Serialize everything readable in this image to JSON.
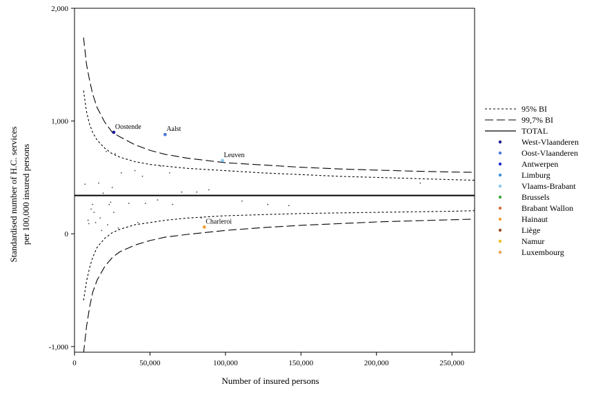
{
  "chart_data": {
    "type": "scatter",
    "title": "",
    "xlabel": "Number of insured persons",
    "ylabel_lines": [
      "Standardised number of H.C. services",
      "per 100,000 insured persons"
    ],
    "xlim": [
      0,
      265000
    ],
    "ylim": [
      -1050,
      2000
    ],
    "xticks": [
      0,
      50000,
      100000,
      150000,
      200000,
      250000
    ],
    "xtick_labels": [
      "0",
      "50,000",
      "100,000",
      "150,000",
      "200,000",
      "250,000"
    ],
    "yticks": [
      -1000,
      0,
      1000,
      2000
    ],
    "ytick_labels": [
      "-1,000",
      "0",
      "1,000",
      "2,000"
    ],
    "grid": false,
    "legend_position": "right",
    "total": 340,
    "bands": {
      "ci95_label": "95% BI",
      "ci997_label": "99,7% BI",
      "total_label": "TOTAL",
      "ci95_upper": [
        [
          6000,
          1270
        ],
        [
          8000,
          1080
        ],
        [
          10000,
          970
        ],
        [
          12000,
          900
        ],
        [
          15000,
          830
        ],
        [
          20000,
          760
        ],
        [
          25000,
          710
        ],
        [
          30000,
          680
        ],
        [
          40000,
          640
        ],
        [
          50000,
          615
        ],
        [
          60000,
          600
        ],
        [
          75000,
          580
        ],
        [
          100000,
          560
        ],
        [
          125000,
          540
        ],
        [
          150000,
          525
        ],
        [
          175000,
          510
        ],
        [
          200000,
          500
        ],
        [
          225000,
          490
        ],
        [
          250000,
          480
        ],
        [
          265000,
          475
        ]
      ],
      "ci95_lower": [
        [
          6000,
          -590
        ],
        [
          8000,
          -420
        ],
        [
          10000,
          -300
        ],
        [
          12000,
          -210
        ],
        [
          15000,
          -120
        ],
        [
          20000,
          -40
        ],
        [
          25000,
          10
        ],
        [
          30000,
          40
        ],
        [
          40000,
          80
        ],
        [
          50000,
          100
        ],
        [
          60000,
          120
        ],
        [
          75000,
          140
        ],
        [
          100000,
          160
        ],
        [
          125000,
          170
        ],
        [
          150000,
          180
        ],
        [
          175000,
          185
        ],
        [
          200000,
          190
        ],
        [
          225000,
          195
        ],
        [
          250000,
          200
        ],
        [
          265000,
          205
        ]
      ],
      "ci997_upper": [
        [
          6000,
          1740
        ],
        [
          8000,
          1500
        ],
        [
          10000,
          1360
        ],
        [
          12000,
          1240
        ],
        [
          15000,
          1120
        ],
        [
          20000,
          990
        ],
        [
          25000,
          900
        ],
        [
          30000,
          860
        ],
        [
          40000,
          790
        ],
        [
          50000,
          740
        ],
        [
          60000,
          705
        ],
        [
          75000,
          670
        ],
        [
          100000,
          630
        ],
        [
          125000,
          610
        ],
        [
          150000,
          590
        ],
        [
          175000,
          575
        ],
        [
          200000,
          565
        ],
        [
          225000,
          555
        ],
        [
          250000,
          548
        ],
        [
          265000,
          545
        ]
      ],
      "ci997_lower": [
        [
          6000,
          -1060
        ],
        [
          8000,
          -820
        ],
        [
          10000,
          -650
        ],
        [
          12000,
          -520
        ],
        [
          15000,
          -410
        ],
        [
          20000,
          -290
        ],
        [
          25000,
          -210
        ],
        [
          30000,
          -160
        ],
        [
          40000,
          -100
        ],
        [
          50000,
          -60
        ],
        [
          60000,
          -30
        ],
        [
          75000,
          -5
        ],
        [
          100000,
          30
        ],
        [
          125000,
          55
        ],
        [
          150000,
          75
        ],
        [
          175000,
          90
        ],
        [
          200000,
          105
        ],
        [
          225000,
          115
        ],
        [
          250000,
          125
        ],
        [
          265000,
          130
        ]
      ]
    },
    "series": [
      {
        "name": "West-Vlaanderen",
        "color": "#1a1a8c",
        "points": [
          [
            26000,
            900
          ]
        ]
      },
      {
        "name": "Oost-Vlaanderen",
        "color": "#4a78d8",
        "points": [
          [
            60000,
            880
          ]
        ]
      },
      {
        "name": "Antwerpen",
        "color": "#1f2fcc",
        "points": []
      },
      {
        "name": "Limburg",
        "color": "#3a8fd8",
        "points": []
      },
      {
        "name": "Vlaams-Brabant",
        "color": "#88c8f0",
        "points": [
          [
            98000,
            650
          ]
        ]
      },
      {
        "name": "Brussels",
        "color": "#3aa83a",
        "points": []
      },
      {
        "name": "Brabant Wallon",
        "color": "#d86a3a",
        "points": []
      },
      {
        "name": "Hainaut",
        "color": "#f0a030",
        "points": [
          [
            86000,
            60
          ]
        ]
      },
      {
        "name": "Liège",
        "color": "#a04a2a",
        "points": []
      },
      {
        "name": "Namur",
        "color": "#f0c020",
        "points": []
      },
      {
        "name": "Luxembourg",
        "color": "#f0a050",
        "points": []
      }
    ],
    "annotations": [
      {
        "text": "Oostende",
        "x": 26000,
        "y": 900
      },
      {
        "text": "Aalst",
        "x": 60000,
        "y": 880
      },
      {
        "text": "Leuven",
        "x": 98000,
        "y": 650
      },
      {
        "text": "Charleroi",
        "x": 86000,
        "y": 60
      }
    ],
    "other_points": [
      [
        7000,
        440
      ],
      [
        9000,
        120
      ],
      [
        9500,
        90
      ],
      [
        11000,
        220
      ],
      [
        12000,
        260
      ],
      [
        13000,
        190
      ],
      [
        14000,
        100
      ],
      [
        16000,
        450
      ],
      [
        17000,
        140
      ],
      [
        18000,
        30
      ],
      [
        19000,
        360
      ],
      [
        21000,
        730
      ],
      [
        22000,
        80
      ],
      [
        23000,
        260
      ],
      [
        24000,
        280
      ],
      [
        25000,
        410
      ],
      [
        26000,
        190
      ],
      [
        27000,
        710
      ],
      [
        29000,
        50
      ],
      [
        31000,
        540
      ],
      [
        36000,
        270
      ],
      [
        40000,
        560
      ],
      [
        42000,
        100
      ],
      [
        45000,
        510
      ],
      [
        47000,
        270
      ],
      [
        55000,
        300
      ],
      [
        57000,
        600
      ],
      [
        63000,
        540
      ],
      [
        65000,
        260
      ],
      [
        71000,
        370
      ],
      [
        81000,
        370
      ],
      [
        84000,
        140
      ],
      [
        89000,
        390
      ],
      [
        111000,
        290
      ],
      [
        128000,
        260
      ],
      [
        142000,
        250
      ],
      [
        229000,
        450
      ],
      [
        265000,
        220
      ]
    ]
  }
}
